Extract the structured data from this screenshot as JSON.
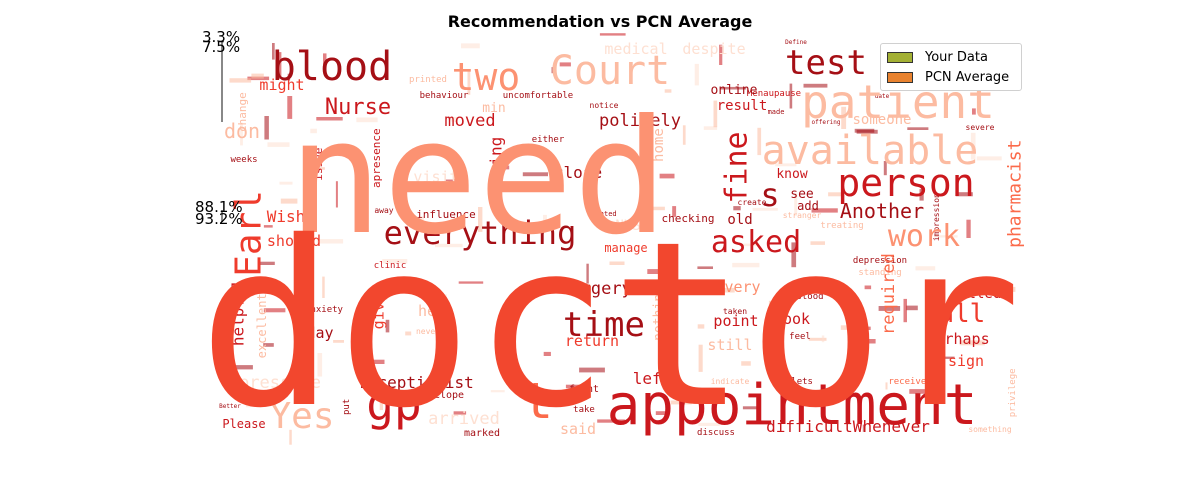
{
  "chart_data": {
    "type": "wordcloud",
    "title": "Recommendation vs PCN Average",
    "legend": {
      "placement": "top-right",
      "entries": [
        {
          "label": "Your Data",
          "color": "#a3b034"
        },
        {
          "label": "PCN Average",
          "color": "#e8822f"
        }
      ]
    },
    "percent_labels": [
      "3.3%",
      "7.5%",
      "88.1%",
      "93.2%"
    ],
    "palette": [
      "#fee0d2",
      "#fcbba1",
      "#fc9272",
      "#fb6a4a",
      "#ef3b2c",
      "#cb181d",
      "#a50f15"
    ],
    "words": [
      {
        "text": "doctor",
        "weight": 100,
        "color": "#f2472e"
      },
      {
        "text": "need",
        "weight": 75,
        "color": "#fc9272"
      },
      {
        "text": "appointment",
        "weight": 26,
        "color": "#cb181d"
      },
      {
        "text": "blood",
        "weight": 17,
        "color": "#a50f15"
      },
      {
        "text": "two",
        "weight": 17,
        "color": "#fc9272"
      },
      {
        "text": "Court",
        "weight": 17,
        "color": "#fcbba1"
      },
      {
        "text": "test",
        "weight": 15,
        "color": "#a50f15"
      },
      {
        "text": "patient",
        "weight": 23,
        "color": "#fcbba1"
      },
      {
        "text": "available",
        "weight": 17,
        "color": "#fcbba1"
      },
      {
        "text": "person",
        "weight": 19,
        "color": "#cb181d"
      },
      {
        "text": "everything",
        "weight": 15,
        "color": "#a50f15"
      },
      {
        "text": "gp",
        "weight": 21,
        "color": "#cb181d"
      },
      {
        "text": "t",
        "weight": 24,
        "color": "#fb6a4a"
      },
      {
        "text": "Yes",
        "weight": 15,
        "color": "#fcbba1"
      },
      {
        "text": "time",
        "weight": 14,
        "color": "#a50f15"
      },
      {
        "text": "asked",
        "weight": 13,
        "color": "#cb181d"
      },
      {
        "text": "work",
        "weight": 13,
        "color": "#fc9272"
      },
      {
        "text": "fine",
        "weight": 14,
        "color": "#cb181d"
      },
      {
        "text": "Earl",
        "weight": 18,
        "color": "#ef3b2c"
      },
      {
        "text": "s",
        "weight": 15,
        "color": "#a50f15"
      },
      {
        "text": "Nurse",
        "weight": 9,
        "color": "#cb181d"
      },
      {
        "text": "call",
        "weight": 10,
        "color": "#ef3b2c"
      },
      {
        "text": "Another",
        "weight": 8,
        "color": "#a50f15"
      },
      {
        "text": "moved",
        "weight": 7,
        "color": "#cb181d"
      },
      {
        "text": "medical",
        "weight": 6,
        "color": "#fee0d2"
      },
      {
        "text": "despite",
        "weight": 6,
        "color": "#fee0d2"
      },
      {
        "text": "pharmacist",
        "weight": 8,
        "color": "#fb6a4a"
      },
      {
        "text": "required",
        "weight": 7,
        "color": "#fb6a4a"
      },
      {
        "text": "surgery",
        "weight": 7,
        "color": "#a50f15"
      },
      {
        "text": "receptionist",
        "weight": 7,
        "color": "#a50f15"
      },
      {
        "text": "difficultWhenever",
        "weight": 7,
        "color": "#cb181d"
      },
      {
        "text": "pressure",
        "weight": 7,
        "color": "#fee0d2"
      },
      {
        "text": "arrived",
        "weight": 7,
        "color": "#fee0d2"
      },
      {
        "text": "politely",
        "weight": 7,
        "color": "#a50f15"
      },
      {
        "text": "meeting",
        "weight": 7,
        "color": "#cb181d"
      },
      {
        "text": "close",
        "weight": 6,
        "color": "#a50f15"
      },
      {
        "text": "showed",
        "weight": 6,
        "color": "#ef3b2c"
      },
      {
        "text": "Wish",
        "weight": 6,
        "color": "#ef3b2c"
      },
      {
        "text": "left",
        "weight": 7,
        "color": "#cb181d"
      },
      {
        "text": "given",
        "weight": 6,
        "color": "#ef3b2c"
      },
      {
        "text": "helpful",
        "weight": 7,
        "color": "#cb181d"
      },
      {
        "text": "Perhaps",
        "weight": 6,
        "color": "#cb181d"
      },
      {
        "text": "called",
        "weight": 6,
        "color": "#cb181d"
      },
      {
        "text": "book",
        "weight": 6,
        "color": "#cb181d"
      },
      {
        "text": "point",
        "weight": 6,
        "color": "#cb181d"
      },
      {
        "text": "Every",
        "weight": 6,
        "color": "#fc9272"
      },
      {
        "text": "return",
        "weight": 6,
        "color": "#ef3b2c"
      },
      {
        "text": "help",
        "weight": 6,
        "color": "#fcbba1"
      },
      {
        "text": "day",
        "weight": 6,
        "color": "#a50f15"
      },
      {
        "text": "might",
        "weight": 6,
        "color": "#ef3b2c"
      },
      {
        "text": "don",
        "weight": 8,
        "color": "#fcbba1"
      },
      {
        "text": "result",
        "weight": 6,
        "color": "#cb181d"
      },
      {
        "text": "online",
        "weight": 5,
        "color": "#a50f15"
      },
      {
        "text": "visit",
        "weight": 6,
        "color": "#fee0d2"
      },
      {
        "text": "someone",
        "weight": 6,
        "color": "#fcbba1"
      },
      {
        "text": "know",
        "weight": 5,
        "color": "#cb181d"
      },
      {
        "text": "home",
        "weight": 5,
        "color": "#fcbba1"
      },
      {
        "text": "still",
        "weight": 6,
        "color": "#fcbba1"
      },
      {
        "text": "sign",
        "weight": 6,
        "color": "#ef3b2c"
      },
      {
        "text": "said",
        "weight": 6,
        "color": "#fcbba1"
      },
      {
        "text": "Please",
        "weight": 5,
        "color": "#cb181d"
      },
      {
        "text": "excellent",
        "weight": 5,
        "color": "#fcbba1"
      },
      {
        "text": "nothing",
        "weight": 5,
        "color": "#fcbba1"
      },
      {
        "text": "old",
        "weight": 5,
        "color": "#a50f15"
      },
      {
        "text": "see",
        "weight": 5,
        "color": "#a50f15"
      },
      {
        "text": "add",
        "weight": 4,
        "color": "#a50f15"
      },
      {
        "text": "NHS",
        "weight": 5,
        "color": "#fee0d2"
      },
      {
        "text": "manage",
        "weight": 5,
        "color": "#ef3b2c"
      },
      {
        "text": "checking",
        "weight": 4,
        "color": "#a50f15"
      },
      {
        "text": "issue",
        "weight": 4,
        "color": "#cb181d"
      },
      {
        "text": "apresence",
        "weight": 4,
        "color": "#cb181d"
      },
      {
        "text": "influence",
        "weight": 4,
        "color": "#a50f15"
      },
      {
        "text": "behaviour",
        "weight": 3,
        "color": "#a50f15"
      },
      {
        "text": "uncomfortable",
        "weight": 3,
        "color": "#a50f15"
      },
      {
        "text": "Menaupause",
        "weight": 3,
        "color": "#cb181d"
      },
      {
        "text": "min",
        "weight": 4,
        "color": "#fcbba1"
      },
      {
        "text": "either",
        "weight": 3,
        "color": "#a50f15"
      },
      {
        "text": "weeks",
        "weight": 3,
        "color": "#a50f15"
      },
      {
        "text": "change",
        "weight": 3,
        "color": "#fcbba1"
      },
      {
        "text": "clinic",
        "weight": 3,
        "color": "#cb181d"
      },
      {
        "text": "anxiety",
        "weight": 3,
        "color": "#a50f15"
      },
      {
        "text": "envelope",
        "weight": 3,
        "color": "#a50f15"
      },
      {
        "text": "marked",
        "weight": 3,
        "color": "#a50f15"
      },
      {
        "text": "front",
        "weight": 3,
        "color": "#a50f15"
      },
      {
        "text": "take",
        "weight": 3,
        "color": "#a50f15"
      },
      {
        "text": "discuss",
        "weight": 3,
        "color": "#a50f15"
      },
      {
        "text": "received",
        "weight": 3,
        "color": "#fb6a4a"
      },
      {
        "text": "tablets",
        "weight": 3,
        "color": "#a50f15"
      },
      {
        "text": "indicate",
        "weight": 3,
        "color": "#fcbba1"
      },
      {
        "text": "something",
        "weight": 2,
        "color": "#fcbba1"
      },
      {
        "text": "privilege",
        "weight": 2,
        "color": "#fcbba1"
      },
      {
        "text": "stood",
        "weight": 3,
        "color": "#a50f15"
      },
      {
        "text": "feel",
        "weight": 3,
        "color": "#a50f15"
      },
      {
        "text": "taken",
        "weight": 2,
        "color": "#a50f15"
      },
      {
        "text": "depression",
        "weight": 3,
        "color": "#a50f15"
      },
      {
        "text": "standing",
        "weight": 3,
        "color": "#fcbba1"
      },
      {
        "text": "treating",
        "weight": 3,
        "color": "#fcbba1"
      },
      {
        "text": "create",
        "weight": 3,
        "color": "#a50f15"
      },
      {
        "text": "stranger",
        "weight": 3,
        "color": "#fcbba1"
      },
      {
        "text": "impression",
        "weight": 2,
        "color": "#a50f15"
      },
      {
        "text": "severe",
        "weight": 2,
        "color": "#a50f15"
      },
      {
        "text": "notice",
        "weight": 2,
        "color": "#a50f15"
      },
      {
        "text": "printed",
        "weight": 3,
        "color": "#fcbba1"
      },
      {
        "text": "away",
        "weight": 2,
        "color": "#a50f15"
      },
      {
        "text": "wanted",
        "weight": 2,
        "color": "#a50f15"
      },
      {
        "text": "made",
        "weight": 2,
        "color": "#a50f15"
      },
      {
        "text": "put",
        "weight": 2,
        "color": "#a50f15"
      },
      {
        "text": "never",
        "weight": 2,
        "color": "#fcbba1"
      },
      {
        "text": "offering",
        "weight": 2,
        "color": "#a50f15"
      },
      {
        "text": "date",
        "weight": 2,
        "color": "#a50f15"
      },
      {
        "text": "Better",
        "weight": 2,
        "color": "#a50f15"
      },
      {
        "text": "Define",
        "weight": 2,
        "color": "#a50f15"
      }
    ]
  }
}
